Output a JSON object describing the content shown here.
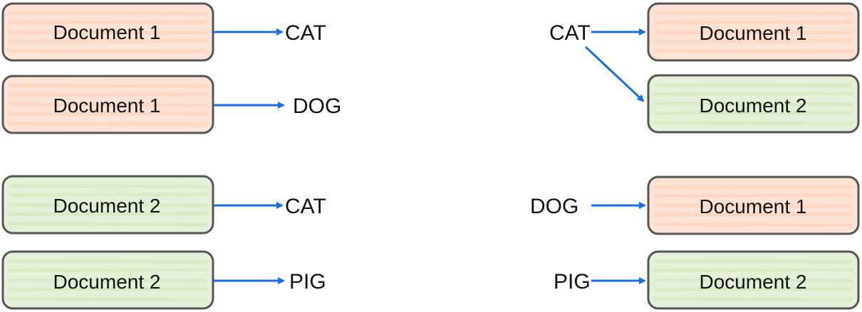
{
  "colors": {
    "doc1_fill": "#fde3d6",
    "doc1_stripe": "#f9cdb6",
    "doc2_fill": "#e4f1d8",
    "doc2_stripe": "#cde6b8",
    "box_border": "#555555",
    "arrow": "#1a6fe0"
  },
  "left": {
    "rows": [
      {
        "doc_label": "Document 1",
        "doc_kind": "doc1",
        "term": "CAT"
      },
      {
        "doc_label": "Document 1",
        "doc_kind": "doc1",
        "term": "DOG"
      },
      {
        "doc_label": "Document 2",
        "doc_kind": "doc2",
        "term": "CAT"
      },
      {
        "doc_label": "Document 2",
        "doc_kind": "doc2",
        "term": "PIG"
      }
    ]
  },
  "right": {
    "terms": [
      "CAT",
      "DOG",
      "PIG"
    ],
    "docs": [
      {
        "doc_label": "Document 1",
        "doc_kind": "doc1"
      },
      {
        "doc_label": "Document 2",
        "doc_kind": "doc2"
      },
      {
        "doc_label": "Document 1",
        "doc_kind": "doc1"
      },
      {
        "doc_label": "Document 2",
        "doc_kind": "doc2"
      }
    ]
  }
}
